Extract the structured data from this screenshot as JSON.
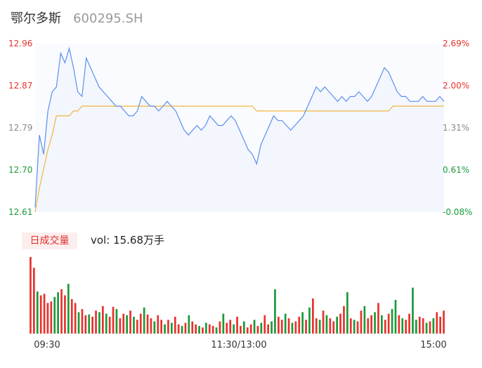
{
  "header": {
    "name": "鄂尔多斯",
    "code": "600295.SH"
  },
  "volume": {
    "tab_label": "日成交量",
    "readout_label": "vol:",
    "readout_value": "15.68万手"
  },
  "colors": {
    "up": "#e8312c",
    "down": "#1a9a3a",
    "price_line": "#5b8ff0",
    "avg_line": "#f0b740",
    "area": "#f3f6fd"
  },
  "chart_data": [
    {
      "type": "line",
      "title": "",
      "y_ticks": [
        "12.96",
        "12.87",
        "12.79",
        "12.70",
        "12.61"
      ],
      "pct_ticks": [
        "2.69%",
        "2.00%",
        "1.31%",
        "0.61%",
        "-0.08%"
      ],
      "ylim": [
        12.61,
        12.96
      ],
      "series": [
        {
          "values": [
            12.62,
            12.77,
            12.73,
            12.82,
            12.86,
            12.87,
            12.94,
            12.92,
            12.95,
            12.91,
            12.86,
            12.85,
            12.93,
            12.91,
            12.89,
            12.87,
            12.86,
            12.85,
            12.84,
            12.83,
            12.83,
            12.82,
            12.81,
            12.81,
            12.82,
            12.85,
            12.84,
            12.83,
            12.83,
            12.82,
            12.83,
            12.84,
            12.83,
            12.82,
            12.8,
            12.78,
            12.77,
            12.78,
            12.79,
            12.78,
            12.79,
            12.81,
            12.8,
            12.79,
            12.79,
            12.8,
            12.81,
            12.8,
            12.78,
            12.76,
            12.74,
            12.73,
            12.71,
            12.75,
            12.77,
            12.79,
            12.81,
            12.8,
            12.8,
            12.79,
            12.78,
            12.79,
            12.8,
            12.81,
            12.83,
            12.85,
            12.87,
            12.86,
            12.87,
            12.86,
            12.85,
            12.84,
            12.85,
            12.84,
            12.85,
            12.85,
            12.86,
            12.85,
            12.84,
            12.85,
            12.87,
            12.89,
            12.91,
            12.9,
            12.88,
            12.86,
            12.85,
            12.85,
            12.84,
            12.84,
            12.84,
            12.85,
            12.84,
            12.84,
            12.84,
            12.85,
            12.84
          ],
          "x_range": [
            "09:30",
            "15:00"
          ]
        },
        {
          "values": [
            12.61,
            12.66,
            12.7,
            12.74,
            12.77,
            12.81,
            12.81,
            12.81,
            12.81,
            12.82,
            12.82,
            12.83,
            12.83,
            12.83,
            12.83,
            12.83,
            12.83,
            12.83,
            12.83,
            12.83,
            12.83,
            12.83,
            12.83,
            12.83,
            12.83,
            12.83,
            12.83,
            12.83,
            12.83,
            12.83,
            12.83,
            12.83,
            12.83,
            12.83,
            12.83,
            12.83,
            12.83,
            12.83,
            12.83,
            12.83,
            12.83,
            12.83,
            12.83,
            12.83,
            12.83,
            12.83,
            12.83,
            12.83,
            12.83,
            12.83,
            12.83,
            12.83,
            12.82,
            12.82,
            12.82,
            12.82,
            12.82,
            12.82,
            12.82,
            12.82,
            12.82,
            12.82,
            12.82,
            12.82,
            12.82,
            12.82,
            12.82,
            12.82,
            12.82,
            12.82,
            12.82,
            12.82,
            12.82,
            12.82,
            12.82,
            12.82,
            12.82,
            12.82,
            12.82,
            12.82,
            12.82,
            12.82,
            12.82,
            12.82,
            12.83,
            12.83,
            12.83,
            12.83,
            12.83,
            12.83,
            12.83,
            12.83,
            12.83,
            12.83,
            12.83,
            12.83,
            12.83
          ],
          "x_range": [
            "09:30",
            "15:00"
          ]
        }
      ]
    },
    {
      "type": "bar",
      "title": "",
      "x_ticks": [
        "09:30",
        "11:30/13:00",
        "15:00"
      ],
      "values": [
        100,
        86,
        55,
        50,
        52,
        40,
        42,
        48,
        54,
        58,
        50,
        65,
        45,
        40,
        28,
        32,
        24,
        25,
        22,
        30,
        28,
        36,
        26,
        22,
        35,
        32,
        20,
        26,
        24,
        30,
        22,
        18,
        26,
        34,
        25,
        20,
        16,
        24,
        18,
        12,
        18,
        14,
        22,
        12,
        10,
        14,
        24,
        16,
        12,
        10,
        8,
        14,
        12,
        10,
        8,
        16,
        26,
        14,
        18,
        12,
        22,
        10,
        16,
        8,
        12,
        18,
        10,
        14,
        24,
        12,
        16,
        58,
        22,
        18,
        26,
        20,
        14,
        16,
        22,
        28,
        18,
        34,
        46,
        20,
        18,
        30,
        24,
        20,
        16,
        22,
        26,
        36,
        54,
        20,
        18,
        16,
        30,
        36,
        20,
        24,
        28,
        40,
        24,
        18,
        26,
        32,
        44,
        24,
        20,
        18,
        26,
        60,
        18,
        22,
        20,
        14,
        16,
        20,
        28,
        22,
        30
      ],
      "up": [
        1,
        1,
        0,
        1,
        1,
        1,
        1,
        0,
        0,
        1,
        1,
        0,
        1,
        1,
        0,
        1,
        1,
        0,
        1,
        1,
        0,
        1,
        0,
        1,
        1,
        0,
        1,
        1,
        0,
        1,
        0,
        1,
        1,
        0,
        1,
        1,
        0,
        1,
        1,
        0,
        1,
        0,
        1,
        1,
        0,
        1,
        0,
        1,
        1,
        0,
        1,
        0,
        1,
        1,
        0,
        1,
        0,
        1,
        1,
        0,
        1,
        1,
        0,
        1,
        1,
        0,
        1,
        0,
        1,
        1,
        0,
        0,
        1,
        1,
        0,
        1,
        0,
        1,
        1,
        0,
        1,
        0,
        1,
        1,
        0,
        1,
        0,
        1,
        1,
        0,
        1,
        1,
        0,
        1,
        0,
        1,
        1,
        0,
        1,
        1,
        0,
        1,
        0,
        1,
        1,
        0,
        0,
        1,
        0,
        1,
        1,
        0,
        0,
        1,
        1,
        0,
        1,
        0,
        1,
        1,
        1
      ]
    }
  ]
}
